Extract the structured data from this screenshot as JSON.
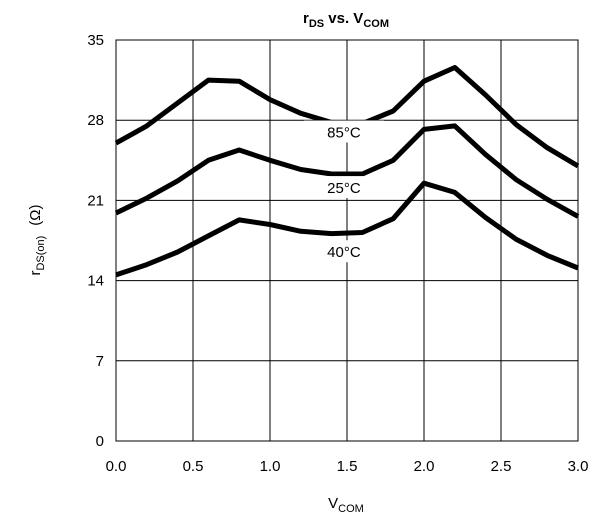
{
  "chart_data": {
    "type": "line",
    "title": {
      "main": "r",
      "main_sub": "DS",
      "mid": " vs. V",
      "end_sub": "COM"
    },
    "xlabel": {
      "main": "V",
      "sub": "COM"
    },
    "ylabel": {
      "main": "r",
      "sub": "DS(on)",
      "unit": "(Ω)"
    },
    "xlim": [
      0,
      3
    ],
    "ylim": [
      0,
      35
    ],
    "xticks": [
      "0.0",
      "0.5",
      "1.0",
      "1.5",
      "2.0",
      "2.5",
      "3.0"
    ],
    "xtick_values": [
      0,
      0.5,
      1.0,
      1.5,
      2.0,
      2.5,
      3.0
    ],
    "yticks": [
      "0",
      "7",
      "14",
      "21",
      "28",
      "35"
    ],
    "ytick_values": [
      0,
      7,
      14,
      21,
      28,
      35
    ],
    "grid": true,
    "line_color": "#000000",
    "x": [
      0.0,
      0.2,
      0.4,
      0.6,
      0.8,
      1.0,
      1.2,
      1.4,
      1.6,
      1.8,
      2.0,
      2.2,
      2.4,
      2.6,
      2.8,
      3.0
    ],
    "series": [
      {
        "name": "85°C",
        "values": [
          26.0,
          27.5,
          29.5,
          31.5,
          31.4,
          29.8,
          28.6,
          27.8,
          27.7,
          28.8,
          31.4,
          32.6,
          30.2,
          27.6,
          25.6,
          24.0
        ]
      },
      {
        "name": "25°C",
        "values": [
          19.9,
          21.2,
          22.7,
          24.5,
          25.4,
          24.5,
          23.7,
          23.3,
          23.3,
          24.5,
          27.2,
          27.5,
          25.0,
          22.8,
          21.1,
          19.6
        ]
      },
      {
        "name": "40°C",
        "values": [
          14.5,
          15.4,
          16.5,
          17.9,
          19.3,
          18.9,
          18.3,
          18.1,
          18.2,
          19.4,
          22.5,
          21.7,
          19.5,
          17.6,
          16.2,
          15.1
        ]
      }
    ]
  }
}
